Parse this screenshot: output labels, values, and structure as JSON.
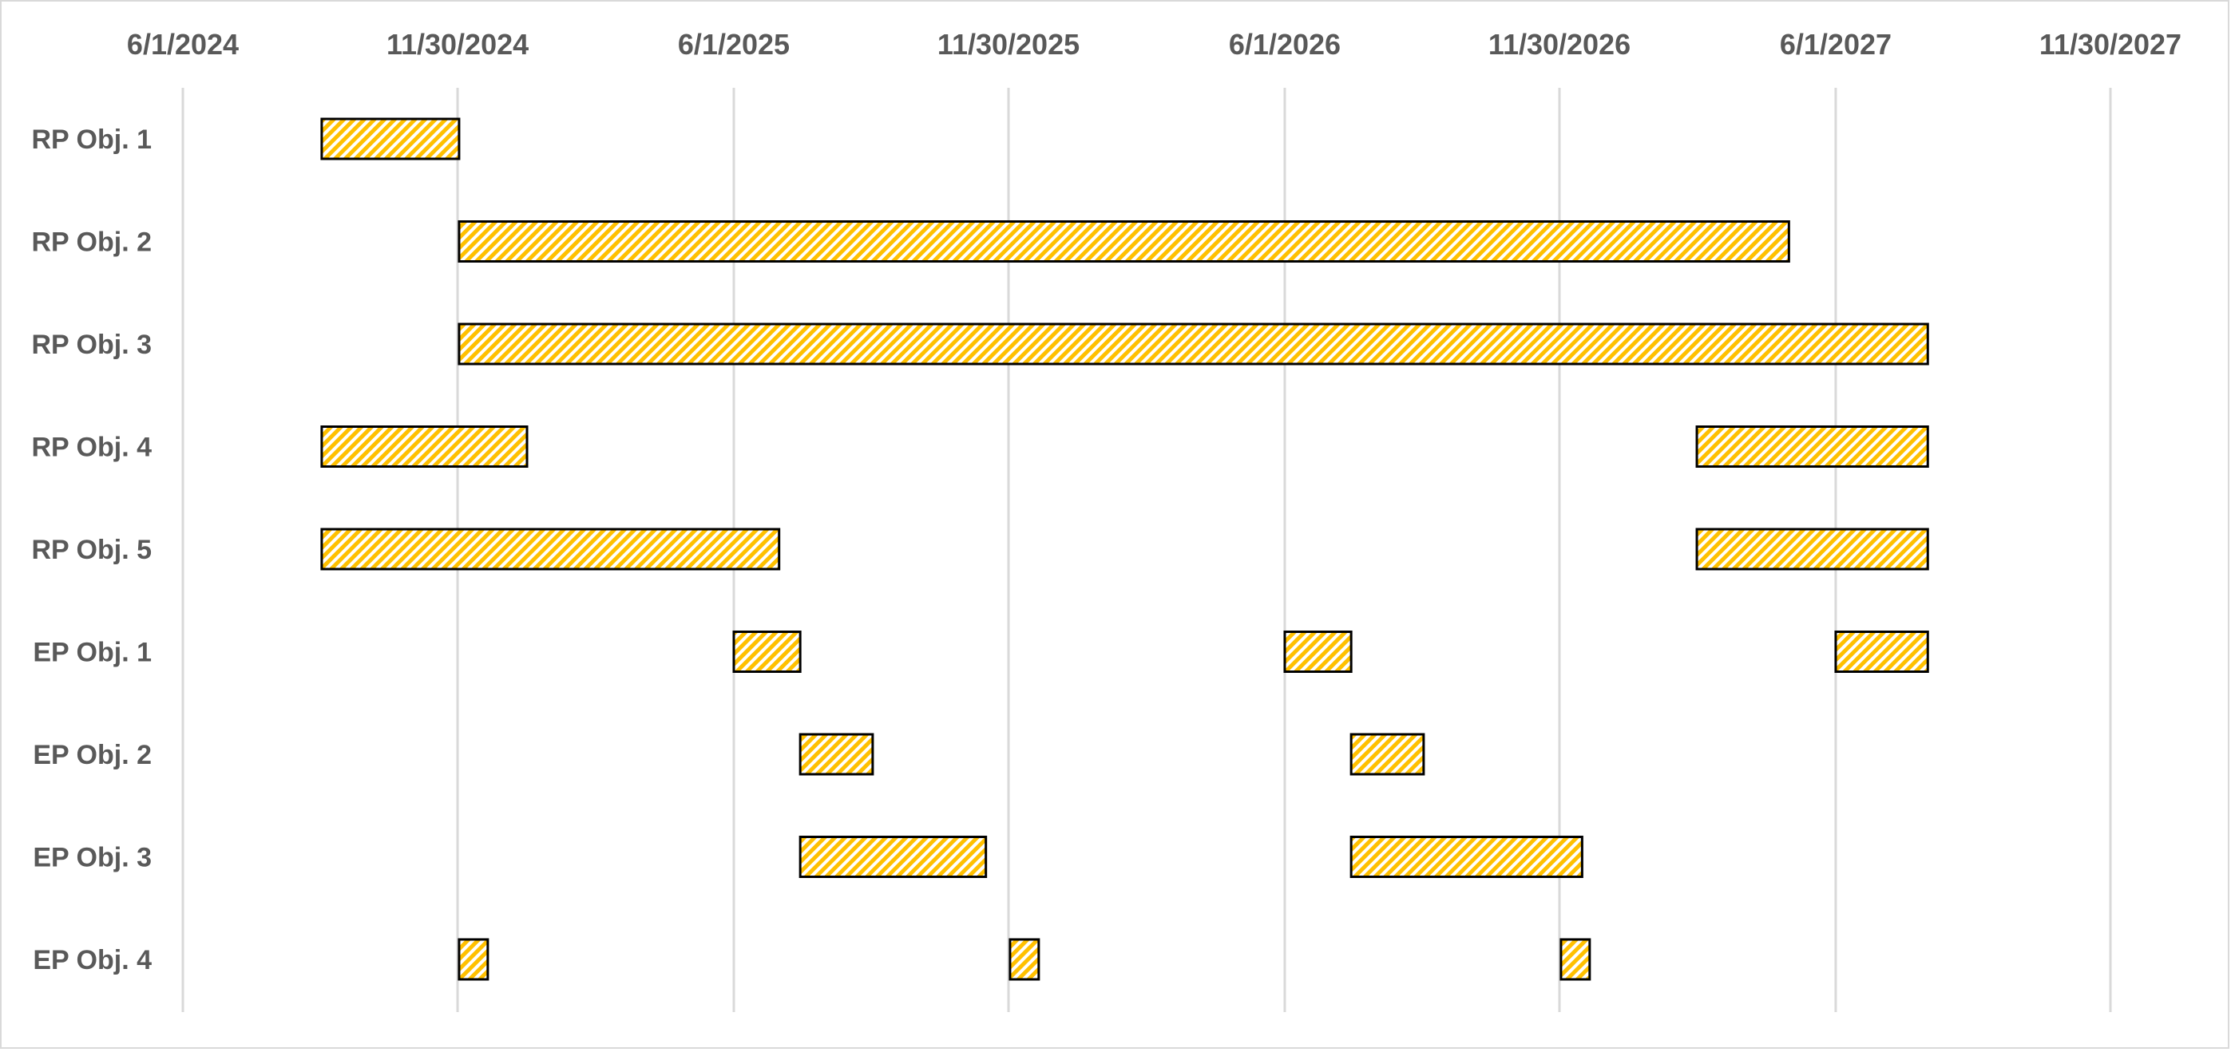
{
  "chart_data": {
    "type": "bar",
    "subtype": "gantt",
    "title": "",
    "xlabel": "",
    "ylabel": "",
    "x_axis": {
      "position": "top",
      "ticks": [
        "6/1/2024",
        "11/30/2024",
        "6/1/2025",
        "11/30/2025",
        "6/1/2026",
        "11/30/2026",
        "6/1/2027",
        "11/30/2027"
      ],
      "range": [
        "6/1/2024",
        "11/30/2027"
      ]
    },
    "grid": true,
    "legend": false,
    "bar_color": "#ffc000",
    "bar_pattern": "diagonal-hatch",
    "bar_pattern_bg": "#ffffff",
    "bar_outline": "#000000",
    "grid_color": "#d9d9d9",
    "label_color": "#595959",
    "categories": [
      "RP Obj. 1",
      "RP Obj. 2",
      "RP Obj. 3",
      "RP Obj. 4",
      "RP Obj. 5",
      "EP Obj. 1",
      "EP Obj. 2",
      "EP Obj. 3",
      "EP Obj. 4"
    ],
    "tasks": [
      {
        "category": "RP Obj. 1",
        "segments": [
          [
            "9/1/2024",
            "12/1/2024"
          ]
        ]
      },
      {
        "category": "RP Obj. 2",
        "segments": [
          [
            "12/1/2024",
            "5/1/2027"
          ]
        ]
      },
      {
        "category": "RP Obj. 3",
        "segments": [
          [
            "12/1/2024",
            "8/1/2027"
          ]
        ]
      },
      {
        "category": "RP Obj. 4",
        "segments": [
          [
            "9/1/2024",
            "1/15/2025"
          ],
          [
            "3/1/2027",
            "8/1/2027"
          ]
        ]
      },
      {
        "category": "RP Obj. 5",
        "segments": [
          [
            "9/1/2024",
            "7/1/2025"
          ],
          [
            "3/1/2027",
            "8/1/2027"
          ]
        ]
      },
      {
        "category": "EP Obj. 1",
        "segments": [
          [
            "6/1/2025",
            "7/15/2025"
          ],
          [
            "6/1/2026",
            "7/15/2026"
          ],
          [
            "6/1/2027",
            "8/1/2027"
          ]
        ]
      },
      {
        "category": "EP Obj. 2",
        "segments": [
          [
            "7/15/2025",
            "9/1/2025"
          ],
          [
            "7/15/2026",
            "9/1/2026"
          ]
        ]
      },
      {
        "category": "EP Obj. 3",
        "segments": [
          [
            "7/15/2025",
            "11/15/2025"
          ],
          [
            "7/15/2026",
            "12/15/2026"
          ]
        ]
      },
      {
        "category": "EP Obj. 4",
        "segments": [
          [
            "12/1/2024",
            "12/20/2024"
          ],
          [
            "12/1/2025",
            "12/20/2025"
          ],
          [
            "12/1/2026",
            "12/20/2026"
          ]
        ]
      }
    ]
  }
}
